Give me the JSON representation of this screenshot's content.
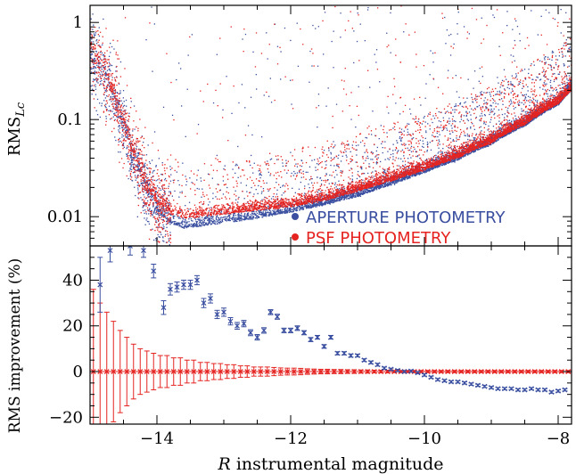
{
  "chart_data": [
    {
      "type": "scatter",
      "panel": "top",
      "ylabel_main": "RMS",
      "ylabel_sub": "Lc",
      "y_scale": "log",
      "xlim": [
        -15,
        -7.8
      ],
      "ylim": [
        0.005,
        1.5
      ],
      "y_ticks": [
        {
          "value": 0.01,
          "label": "0.01"
        },
        {
          "value": 0.1,
          "label": "0.1"
        },
        {
          "value": 1,
          "label": "1"
        }
      ],
      "legend_placement": "bottom-right",
      "series": [
        {
          "name": "APERTURE PHOTOMETRY",
          "color": "#3a4fa0",
          "x": [
            -15.0,
            -14.8,
            -14.6,
            -14.4,
            -14.2,
            -14.0,
            -13.8,
            -13.6,
            -13.4,
            -13.0,
            -12.5,
            -12.0,
            -11.5,
            -11.0,
            -10.5,
            -10.0,
            -9.5,
            -9.0,
            -8.5,
            -8.0,
            -7.8
          ],
          "y": [
            0.45,
            0.3,
            0.12,
            0.045,
            0.02,
            0.011,
            0.0085,
            0.0075,
            0.0078,
            0.0085,
            0.0095,
            0.011,
            0.013,
            0.016,
            0.021,
            0.028,
            0.038,
            0.055,
            0.085,
            0.14,
            0.2
          ]
        },
        {
          "name": "PSF PHOTOMETRY",
          "color": "#e52421",
          "x": [
            -15.0,
            -14.8,
            -14.6,
            -14.4,
            -14.2,
            -14.0,
            -13.8,
            -13.6,
            -13.4,
            -13.0,
            -12.5,
            -12.0,
            -11.5,
            -11.0,
            -10.5,
            -10.0,
            -9.5,
            -9.0,
            -8.5,
            -8.0,
            -7.8
          ],
          "y": [
            0.5,
            0.32,
            0.13,
            0.05,
            0.022,
            0.013,
            0.0105,
            0.0095,
            0.0098,
            0.0105,
            0.0115,
            0.0125,
            0.0145,
            0.018,
            0.023,
            0.03,
            0.04,
            0.057,
            0.088,
            0.145,
            0.2
          ]
        }
      ]
    },
    {
      "type": "line",
      "panel": "bottom",
      "xlabel_italic": "R",
      "xlabel_rest": " instrumental magnitude",
      "ylabel": "RMS improvement (%)",
      "xlim": [
        -15,
        -7.8
      ],
      "ylim": [
        -23,
        55
      ],
      "x_ticks": [
        -14,
        -12,
        -10,
        -8
      ],
      "x_tick_labels": [
        "−14",
        "−12",
        "−10",
        "−8"
      ],
      "y_ticks": [
        -20,
        0,
        20,
        40
      ],
      "y_tick_labels": [
        "−20",
        "0",
        "20",
        "40"
      ],
      "series": [
        {
          "name": "APERTURE PHOTOMETRY",
          "color": "#3a4fa0",
          "x": [
            -14.85,
            -14.7,
            -14.4,
            -14.2,
            -14.05,
            -13.9,
            -13.8,
            -13.7,
            -13.6,
            -13.5,
            -13.4,
            -13.3,
            -13.2,
            -13.1,
            -13.0,
            -12.9,
            -12.8,
            -12.7,
            -12.6,
            -12.5,
            -12.4,
            -12.3,
            -12.2,
            -12.1,
            -12.0,
            -11.9,
            -11.8,
            -11.7,
            -11.6,
            -11.5,
            -11.4,
            -11.3,
            -11.2,
            -11.1,
            -11.0,
            -10.9,
            -10.8,
            -10.7,
            -10.6,
            -10.5,
            -10.4,
            -10.3,
            -10.2,
            -10.1,
            -10.0,
            -9.9,
            -9.8,
            -9.7,
            -9.6,
            -9.5,
            -9.4,
            -9.3,
            -9.2,
            -9.1,
            -9.0,
            -8.9,
            -8.8,
            -8.7,
            -8.6,
            -8.5,
            -8.4,
            -8.3,
            -8.2,
            -8.1,
            -8.0,
            -7.9
          ],
          "y": [
            38,
            53,
            55,
            53,
            44,
            28,
            36,
            37,
            38,
            38,
            40,
            30,
            32,
            25,
            26,
            22,
            20,
            21,
            17,
            15,
            18,
            26,
            24,
            18,
            18,
            19,
            17,
            14,
            15,
            11,
            15,
            8,
            8,
            7,
            7,
            5,
            4,
            3,
            1.5,
            1,
            0.5,
            0,
            0.2,
            -0.5,
            -1.5,
            -2.5,
            -3.5,
            -4,
            -4.5,
            -4.5,
            -5,
            -5.5,
            -6,
            -6.5,
            -7,
            -7.5,
            -7.5,
            -7.5,
            -8,
            -8,
            -7.5,
            -8,
            -8,
            -9,
            -8.5,
            -8
          ],
          "err": [
            12,
            5,
            4,
            3,
            3,
            3,
            2.5,
            2.2,
            2,
            2,
            2,
            2,
            2,
            1.8,
            1.8,
            1.6,
            1.5,
            1.4,
            1.3,
            1.2,
            1.2,
            1.1,
            1.1,
            1,
            1,
            1,
            0.9,
            0.9,
            0.8,
            0.8,
            0.8,
            0.7,
            0.7,
            0.7,
            0.6,
            0.6,
            0.6,
            0.6,
            0.5,
            0.5,
            0.5,
            0.5,
            0.5,
            0.5,
            0.5,
            0.5,
            0.5,
            0.5,
            0.5,
            0.5,
            0.5,
            0.5,
            0.5,
            0.5,
            0.5,
            0.5,
            0.5,
            0.5,
            0.5,
            0.5,
            0.5,
            0.5,
            0.5,
            0.5,
            0.5,
            0.5
          ]
        },
        {
          "name": "PSF PHOTOMETRY",
          "color": "#e52421",
          "x": [
            -14.95,
            -14.85,
            -14.75,
            -14.65,
            -14.55,
            -14.45,
            -14.35,
            -14.25,
            -14.15,
            -14.05,
            -13.95,
            -13.85,
            -13.75,
            -13.65,
            -13.55,
            -13.45,
            -13.35,
            -13.25,
            -13.15,
            -13.05,
            -12.95,
            -12.85,
            -12.75,
            -12.65,
            -12.55,
            -12.45,
            -12.35,
            -12.25,
            -12.15,
            -12.05,
            -11.95,
            -11.85,
            -11.75,
            -11.65,
            -11.55,
            -11.45,
            -11.35,
            -11.25,
            -11.15,
            -11.05,
            -10.95,
            -10.85,
            -10.75,
            -10.65,
            -10.55,
            -10.45,
            -10.35,
            -10.25,
            -10.15,
            -10.05,
            -9.95,
            -9.85,
            -9.75,
            -9.65,
            -9.55,
            -9.45,
            -9.35,
            -9.25,
            -9.15,
            -9.05,
            -8.95,
            -8.85,
            -8.75,
            -8.65,
            -8.55,
            -8.45,
            -8.35,
            -8.25,
            -8.15,
            -8.05,
            -7.95,
            -7.85
          ],
          "y": [
            0,
            0,
            0,
            0,
            0,
            0,
            0,
            0,
            0,
            0,
            0,
            0,
            0,
            0,
            0,
            0,
            0,
            0,
            0,
            0,
            0,
            0,
            0,
            0,
            0,
            0,
            0,
            0,
            0,
            0,
            0,
            0,
            0,
            0,
            0,
            0,
            0,
            0,
            0,
            0,
            0,
            0,
            0,
            0,
            0,
            0,
            0,
            0,
            0,
            0,
            0,
            0,
            0,
            0,
            0,
            0,
            0,
            0,
            0,
            0,
            0,
            0,
            0,
            0,
            0,
            0,
            0,
            0,
            0,
            0,
            0,
            0
          ],
          "err": [
            36,
            30,
            26,
            22,
            18,
            15,
            12,
            10,
            9,
            8,
            7,
            7,
            6,
            6,
            5,
            5,
            4,
            4,
            3.5,
            3.5,
            3,
            3,
            2.5,
            2.5,
            2,
            2,
            2,
            1.8,
            1.6,
            1.5,
            1.5,
            1.4,
            1.2,
            1.1,
            1,
            1,
            0.9,
            0.9,
            0.8,
            0.8,
            0.7,
            0.7,
            0.6,
            0.6,
            0.6,
            0.5,
            0.5,
            0.5,
            0.5,
            0.5,
            0.5,
            0.5,
            0.5,
            0.5,
            0.5,
            0.5,
            0.5,
            0.5,
            0.5,
            0.5,
            0.5,
            0.5,
            0.5,
            0.5,
            0.5,
            0.5,
            0.5,
            0.5,
            0.5,
            0.5,
            0.5,
            0.5
          ]
        }
      ]
    }
  ],
  "legend": [
    {
      "label": "APERTURE PHOTOMETRY",
      "color": "#3a4fa0"
    },
    {
      "label": "PSF PHOTOMETRY",
      "color": "#e52421"
    }
  ]
}
